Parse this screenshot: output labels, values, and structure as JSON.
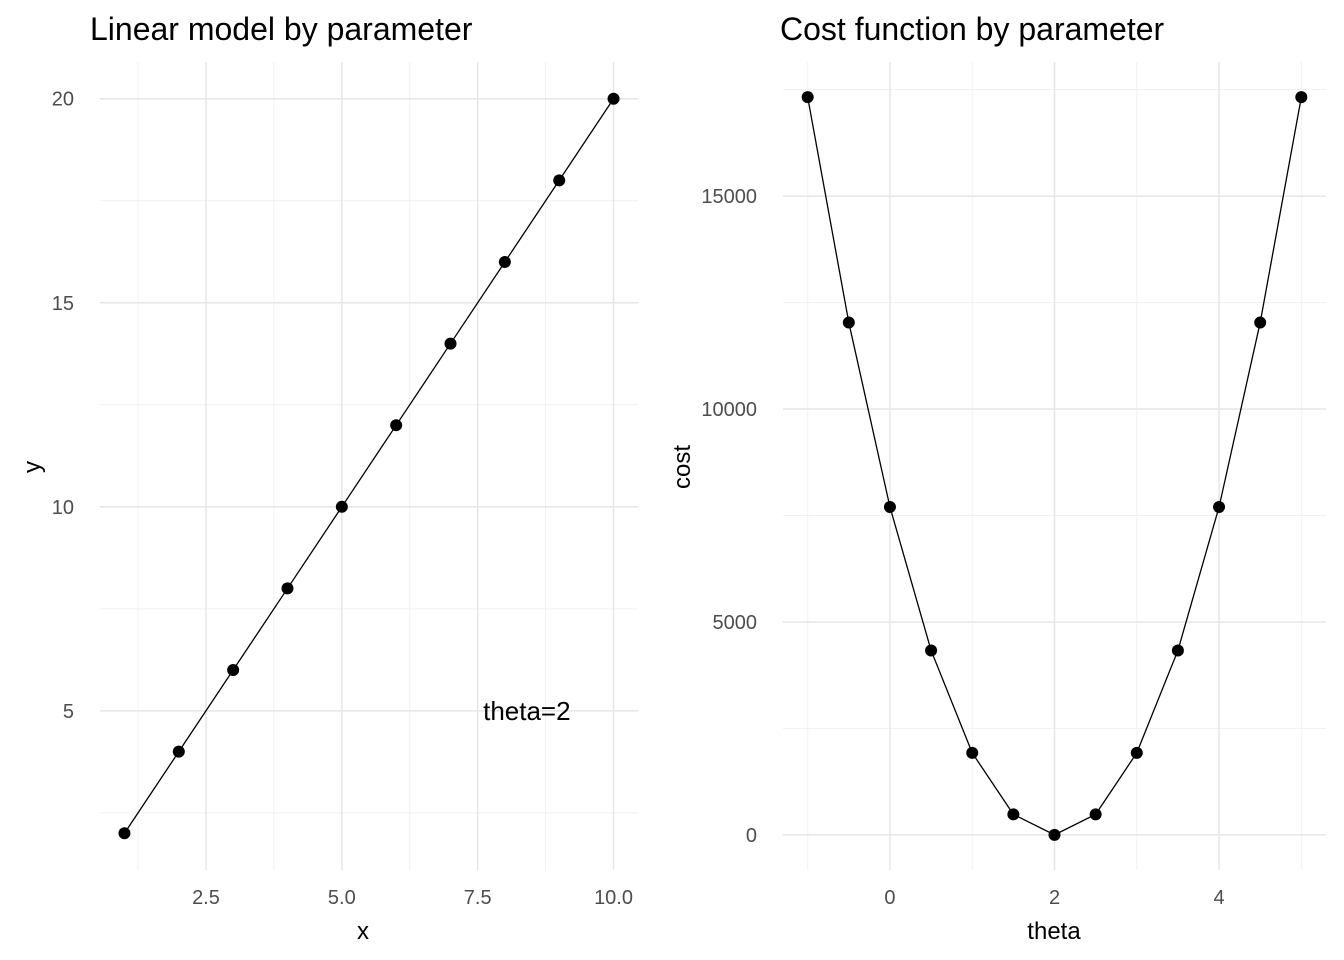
{
  "chart_data": [
    {
      "type": "line",
      "title": "Linear model by parameter",
      "xlabel": "x",
      "ylabel": "y",
      "xlim": [
        0.55,
        10.45
      ],
      "ylim": [
        1.1,
        20.9
      ],
      "xticks": [
        2.5,
        5.0,
        7.5,
        10.0
      ],
      "xtick_labels": [
        "2.5",
        "5.0",
        "7.5",
        "10.0"
      ],
      "yticks": [
        5,
        10,
        15,
        20
      ],
      "ytick_labels": [
        "5",
        "10",
        "15",
        "20"
      ],
      "grid": true,
      "annotation": {
        "text": "theta=2",
        "x": 7.6,
        "y": 5
      },
      "x": [
        1,
        2,
        3,
        4,
        5,
        6,
        7,
        8,
        9,
        10
      ],
      "series": [
        {
          "values": [
            2,
            4,
            6,
            8,
            10,
            12,
            14,
            16,
            18,
            20
          ]
        }
      ]
    },
    {
      "type": "line",
      "title": "Cost function by parameter",
      "xlabel": "theta",
      "ylabel": "cost",
      "xlim": [
        -1.3,
        5.3
      ],
      "ylim": [
        -825,
        18150
      ],
      "xticks": [
        0,
        2,
        4
      ],
      "xtick_labels": [
        "0",
        "2",
        "4"
      ],
      "yticks": [
        0,
        5000,
        10000,
        15000
      ],
      "ytick_labels": [
        "0",
        "5000",
        "10000",
        "15000"
      ],
      "grid": true,
      "x": [
        -1,
        -0.5,
        0,
        0.5,
        1,
        1.5,
        2,
        2.5,
        3,
        3.5,
        4,
        4.5,
        5
      ],
      "series": [
        {
          "values": [
            17325,
            12031,
            7700,
            4331,
            1925,
            481,
            0,
            481,
            1925,
            4331,
            7700,
            12031,
            17325
          ]
        }
      ]
    }
  ]
}
